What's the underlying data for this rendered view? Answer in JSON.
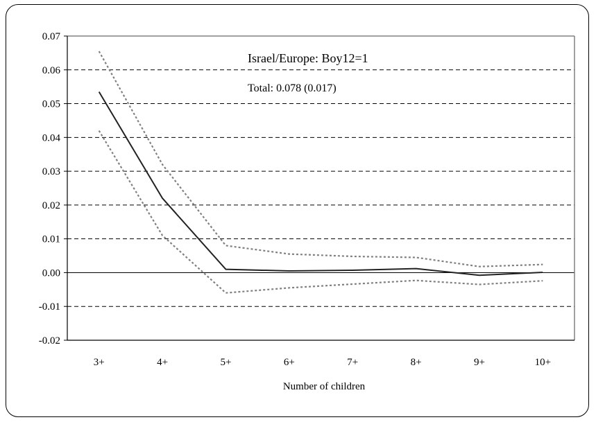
{
  "chart_data": {
    "type": "line",
    "categories": [
      "3+",
      "4+",
      "5+",
      "6+",
      "7+",
      "8+",
      "9+",
      "10+"
    ],
    "series": [
      {
        "role": "estimate",
        "style": "solid",
        "values": [
          0.0535,
          0.022,
          0.001,
          0.0005,
          0.0007,
          0.0012,
          -0.0008,
          0.0001
        ]
      },
      {
        "role": "upper-bound",
        "style": "dotted",
        "values": [
          0.0655,
          0.032,
          0.008,
          0.0055,
          0.0048,
          0.0045,
          0.0018,
          0.0024
        ]
      },
      {
        "role": "lower-bound",
        "style": "dotted",
        "values": [
          0.042,
          0.011,
          -0.006,
          -0.0045,
          -0.0034,
          -0.0023,
          -0.0035,
          -0.0024
        ]
      }
    ],
    "xlabel": "Number of children",
    "ylabel": "",
    "ylim": [
      -0.02,
      0.07
    ],
    "yticks": [
      "0.07",
      "0.06",
      "0.05",
      "0.04",
      "0.03",
      "0.02",
      "0.01",
      "0.00",
      "-0.01",
      "-0.02"
    ],
    "grid": "horizontal-dashed",
    "annotations": {
      "title": "Israel/Europe: Boy12=1",
      "total": "Total: 0.078 (0.017)"
    },
    "colors": {
      "estimate": "#222222",
      "bounds": "#808080",
      "grid": "#000000",
      "zero_line": "#000000",
      "frame": "#808080"
    }
  }
}
